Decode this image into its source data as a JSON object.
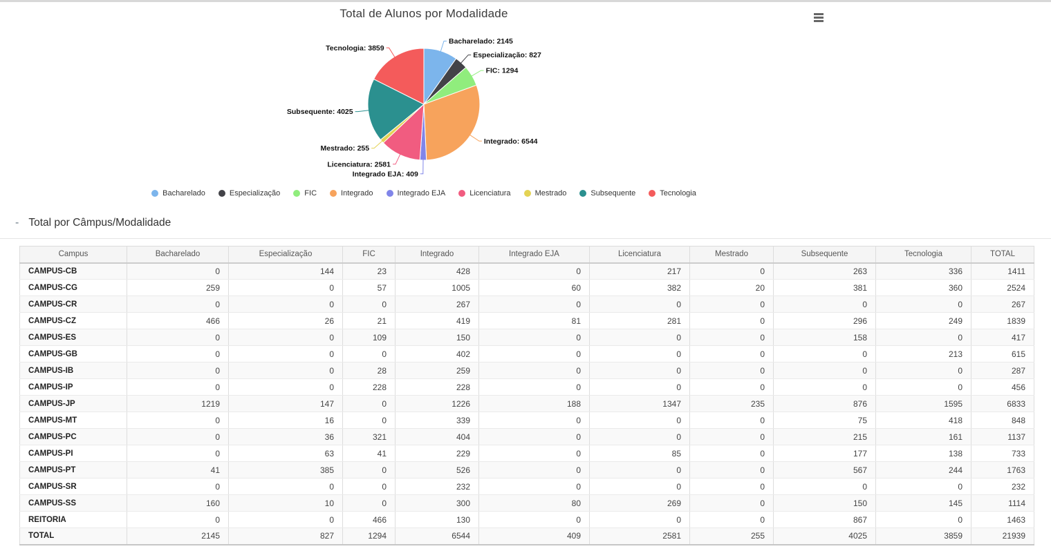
{
  "section": {
    "toggle": "-",
    "title": "Total por Câmpus/Modalidade"
  },
  "chart_menu": {
    "icon": "hamburger-icon"
  },
  "chart_data": [
    {
      "type": "pie",
      "title": "Total de Alunos por Modalidade",
      "legend_position": "bottom",
      "data_label_format": "{name}: {value}",
      "slices": [
        {
          "name": "Bacharelado",
          "value": 2145,
          "color": "#7cb5ec"
        },
        {
          "name": "Especialização",
          "value": 827,
          "color": "#434348"
        },
        {
          "name": "FIC",
          "value": 1294,
          "color": "#90ed7d"
        },
        {
          "name": "Integrado",
          "value": 6544,
          "color": "#f7a35c"
        },
        {
          "name": "Integrado EJA",
          "value": 409,
          "color": "#8085e9"
        },
        {
          "name": "Licenciatura",
          "value": 2581,
          "color": "#f15c80"
        },
        {
          "name": "Mestrado",
          "value": 255,
          "color": "#e4d354"
        },
        {
          "name": "Subsequente",
          "value": 4025,
          "color": "#2b908f"
        },
        {
          "name": "Tecnologia",
          "value": 3859,
          "color": "#f45b5b"
        }
      ]
    },
    {
      "type": "table",
      "title": "Total por Câmpus/Modalidade",
      "columns": [
        "Campus",
        "Bacharelado",
        "Especialização",
        "FIC",
        "Integrado",
        "Integrado EJA",
        "Licenciatura",
        "Mestrado",
        "Subsequente",
        "Tecnologia",
        "TOTAL"
      ],
      "rows": [
        [
          "CAMPUS-CB",
          0,
          144,
          23,
          428,
          0,
          217,
          0,
          263,
          336,
          1411
        ],
        [
          "CAMPUS-CG",
          259,
          0,
          57,
          1005,
          60,
          382,
          20,
          381,
          360,
          2524
        ],
        [
          "CAMPUS-CR",
          0,
          0,
          0,
          267,
          0,
          0,
          0,
          0,
          0,
          267
        ],
        [
          "CAMPUS-CZ",
          466,
          26,
          21,
          419,
          81,
          281,
          0,
          296,
          249,
          1839
        ],
        [
          "CAMPUS-ES",
          0,
          0,
          109,
          150,
          0,
          0,
          0,
          158,
          0,
          417
        ],
        [
          "CAMPUS-GB",
          0,
          0,
          0,
          402,
          0,
          0,
          0,
          0,
          213,
          615
        ],
        [
          "CAMPUS-IB",
          0,
          0,
          28,
          259,
          0,
          0,
          0,
          0,
          0,
          287
        ],
        [
          "CAMPUS-IP",
          0,
          0,
          228,
          228,
          0,
          0,
          0,
          0,
          0,
          456
        ],
        [
          "CAMPUS-JP",
          1219,
          147,
          0,
          1226,
          188,
          1347,
          235,
          876,
          1595,
          6833
        ],
        [
          "CAMPUS-MT",
          0,
          16,
          0,
          339,
          0,
          0,
          0,
          75,
          418,
          848
        ],
        [
          "CAMPUS-PC",
          0,
          36,
          321,
          404,
          0,
          0,
          0,
          215,
          161,
          1137
        ],
        [
          "CAMPUS-PI",
          0,
          63,
          41,
          229,
          0,
          85,
          0,
          177,
          138,
          733
        ],
        [
          "CAMPUS-PT",
          41,
          385,
          0,
          526,
          0,
          0,
          0,
          567,
          244,
          1763
        ],
        [
          "CAMPUS-SR",
          0,
          0,
          0,
          232,
          0,
          0,
          0,
          0,
          0,
          232
        ],
        [
          "CAMPUS-SS",
          160,
          10,
          0,
          300,
          80,
          269,
          0,
          150,
          145,
          1114
        ],
        [
          "REITORIA",
          0,
          0,
          466,
          130,
          0,
          0,
          0,
          867,
          0,
          1463
        ]
      ],
      "total_row": [
        "TOTAL",
        2145,
        827,
        1294,
        6544,
        409,
        2581,
        255,
        4025,
        3859,
        21939
      ]
    }
  ]
}
